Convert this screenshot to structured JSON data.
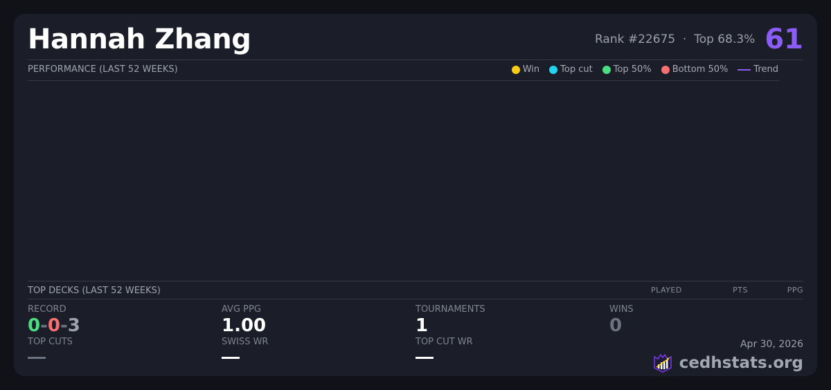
{
  "player": {
    "name": "Hannah Zhang",
    "rank": "Rank #22675",
    "separator": "·",
    "top_percent": "Top 68.3%",
    "score": "61"
  },
  "performance": {
    "label": "PERFORMANCE (LAST 52 WEEKS)",
    "legend": [
      {
        "label": "Win",
        "color": "#facc15"
      },
      {
        "label": "Top cut",
        "color": "#22d3ee"
      },
      {
        "label": "Top 50%",
        "color": "#4ade80"
      },
      {
        "label": "Bottom 50%",
        "color": "#f87171"
      },
      {
        "label": "Trend",
        "color": "#8b5cf6"
      }
    ]
  },
  "top_decks": {
    "label": "TOP DECKS (LAST 52 WEEKS)",
    "columns": [
      "PLAYED",
      "PTS",
      "PPG"
    ]
  },
  "stats": {
    "record": {
      "label": "RECORD",
      "wins": "0",
      "losses": "0",
      "draws": "3",
      "sep": "-"
    },
    "avg_ppg": {
      "label": "AVG PPG",
      "value": "1.00"
    },
    "tournaments": {
      "label": "TOURNAMENTS",
      "value": "1"
    },
    "wins": {
      "label": "WINS",
      "value": "0"
    },
    "top_cuts": {
      "label": "TOP CUTS",
      "value": "—"
    },
    "swiss_wr": {
      "label": "SWISS WR",
      "value": "—"
    },
    "top_cut_wr": {
      "label": "TOP CUT WR",
      "value": "—"
    }
  },
  "footer": {
    "date": "Apr 30, 2026",
    "brand": "cedhstats.org"
  },
  "colors": {
    "accent": "#8b5cf6",
    "win": "#4ade80",
    "loss": "#f87171",
    "draw": "#9ca3af"
  }
}
